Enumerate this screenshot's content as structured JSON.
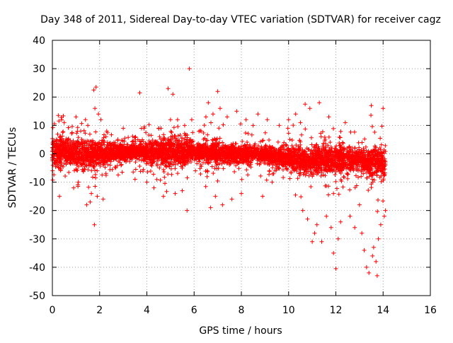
{
  "chart_data": {
    "type": "scatter",
    "title": "Day 348 of 2011, Sidereal Day-to-day VTEC variation (SDTVAR) for receiver cagz",
    "xlabel": "GPS time / hours",
    "ylabel": "SDTVAR / TECUs",
    "xlim": [
      0,
      16
    ],
    "ylim": [
      -50,
      40
    ],
    "x_ticks": [
      0,
      2,
      4,
      6,
      8,
      10,
      12,
      14,
      16
    ],
    "y_ticks": [
      -50,
      -40,
      -30,
      -20,
      -10,
      0,
      10,
      20,
      30,
      40
    ],
    "grid": true,
    "marker": "+",
    "color": "#ff0000",
    "series": [
      {
        "name": "SDTVAR",
        "core_band": [
          {
            "x": 0.0,
            "center": 1.0,
            "spread": 4.5
          },
          {
            "x": 0.5,
            "center": 0.5,
            "spread": 4.0
          },
          {
            "x": 1.0,
            "center": 0.0,
            "spread": 4.5
          },
          {
            "x": 1.5,
            "center": -0.5,
            "spread": 4.5
          },
          {
            "x": 2.0,
            "center": 0.0,
            "spread": 4.0
          },
          {
            "x": 2.5,
            "center": 0.5,
            "spread": 2.5
          },
          {
            "x": 3.0,
            "center": 0.5,
            "spread": 2.5
          },
          {
            "x": 3.5,
            "center": 1.0,
            "spread": 2.5
          },
          {
            "x": 4.0,
            "center": 0.5,
            "spread": 3.0
          },
          {
            "x": 4.5,
            "center": 0.5,
            "spread": 3.5
          },
          {
            "x": 5.0,
            "center": 1.0,
            "spread": 4.0
          },
          {
            "x": 5.5,
            "center": 1.0,
            "spread": 4.0
          },
          {
            "x": 6.0,
            "center": 1.0,
            "spread": 3.0
          },
          {
            "x": 6.5,
            "center": 0.5,
            "spread": 3.0
          },
          {
            "x": 7.0,
            "center": 0.5,
            "spread": 3.5
          },
          {
            "x": 7.5,
            "center": 0.0,
            "spread": 3.0
          },
          {
            "x": 8.0,
            "center": 0.0,
            "spread": 3.0
          },
          {
            "x": 8.5,
            "center": 0.0,
            "spread": 2.5
          },
          {
            "x": 9.0,
            "center": -0.5,
            "spread": 2.5
          },
          {
            "x": 9.5,
            "center": -1.0,
            "spread": 3.0
          },
          {
            "x": 10.0,
            "center": -1.5,
            "spread": 3.5
          },
          {
            "x": 10.5,
            "center": -2.0,
            "spread": 4.0
          },
          {
            "x": 11.0,
            "center": -2.5,
            "spread": 4.5
          },
          {
            "x": 11.5,
            "center": -2.0,
            "spread": 4.5
          },
          {
            "x": 12.0,
            "center": -2.0,
            "spread": 4.0
          },
          {
            "x": 12.5,
            "center": -2.0,
            "spread": 4.0
          },
          {
            "x": 13.0,
            "center": -2.5,
            "spread": 4.5
          },
          {
            "x": 13.5,
            "center": -3.0,
            "spread": 5.0
          },
          {
            "x": 14.0,
            "center": -3.0,
            "spread": 5.0
          },
          {
            "x": 14.1,
            "center": -3.0,
            "spread": 5.0
          }
        ],
        "outliers": [
          [
            0.25,
            13.5
          ],
          [
            0.3,
            -15
          ],
          [
            0.5,
            11
          ],
          [
            0.9,
            -12
          ],
          [
            1.0,
            13
          ],
          [
            1.1,
            -10
          ],
          [
            1.2,
            8
          ],
          [
            1.4,
            12
          ],
          [
            1.45,
            -18
          ],
          [
            1.5,
            10
          ],
          [
            1.6,
            -17
          ],
          [
            1.65,
            -14
          ],
          [
            1.75,
            22.5
          ],
          [
            1.78,
            -25
          ],
          [
            1.8,
            16
          ],
          [
            1.85,
            23.5
          ],
          [
            1.9,
            -15
          ],
          [
            1.95,
            14
          ],
          [
            2.05,
            12
          ],
          [
            2.15,
            -16
          ],
          [
            2.3,
            8
          ],
          [
            3.0,
            9
          ],
          [
            3.5,
            -9
          ],
          [
            3.7,
            21.5
          ],
          [
            3.9,
            9.5
          ],
          [
            4.0,
            -10
          ],
          [
            4.3,
            -12
          ],
          [
            4.5,
            9
          ],
          [
            4.7,
            -15
          ],
          [
            4.9,
            23
          ],
          [
            5.0,
            12
          ],
          [
            5.1,
            21
          ],
          [
            5.2,
            -14
          ],
          [
            5.3,
            12
          ],
          [
            5.5,
            -13
          ],
          [
            5.6,
            10
          ],
          [
            5.7,
            -20
          ],
          [
            5.8,
            30
          ],
          [
            5.9,
            12
          ],
          [
            6.5,
            13
          ],
          [
            6.6,
            18
          ],
          [
            6.7,
            -19
          ],
          [
            6.8,
            14
          ],
          [
            6.9,
            -15
          ],
          [
            7.0,
            22
          ],
          [
            7.1,
            16
          ],
          [
            7.2,
            -18
          ],
          [
            7.4,
            13
          ],
          [
            7.6,
            -16
          ],
          [
            7.8,
            15
          ],
          [
            8.0,
            -14
          ],
          [
            8.2,
            12
          ],
          [
            8.5,
            10
          ],
          [
            8.7,
            14
          ],
          [
            8.9,
            -15
          ],
          [
            9.1,
            12
          ],
          [
            9.3,
            -10
          ],
          [
            9.6,
            10
          ],
          [
            10.0,
            12
          ],
          [
            10.3,
            14
          ],
          [
            10.5,
            11
          ],
          [
            10.6,
            -20
          ],
          [
            10.7,
            17.5
          ],
          [
            10.8,
            -23
          ],
          [
            10.9,
            16
          ],
          [
            11.0,
            -31
          ],
          [
            11.1,
            -28
          ],
          [
            11.2,
            -25
          ],
          [
            11.3,
            18
          ],
          [
            11.4,
            -31
          ],
          [
            11.6,
            -22
          ],
          [
            11.7,
            13
          ],
          [
            11.8,
            -26
          ],
          [
            11.9,
            -35
          ],
          [
            12.0,
            -40.5
          ],
          [
            12.1,
            -30
          ],
          [
            12.2,
            -24
          ],
          [
            12.4,
            11
          ],
          [
            12.6,
            -22
          ],
          [
            12.8,
            -26
          ],
          [
            13.0,
            -18
          ],
          [
            13.1,
            -28
          ],
          [
            13.2,
            -34
          ],
          [
            13.3,
            -40
          ],
          [
            13.4,
            -42
          ],
          [
            13.5,
            17
          ],
          [
            13.55,
            -36
          ],
          [
            13.6,
            -33
          ],
          [
            13.7,
            -38
          ],
          [
            13.75,
            -43
          ],
          [
            13.8,
            -30
          ],
          [
            13.9,
            -25
          ],
          [
            14.0,
            16
          ],
          [
            14.05,
            -22
          ],
          [
            14.1,
            -20
          ]
        ]
      }
    ]
  }
}
